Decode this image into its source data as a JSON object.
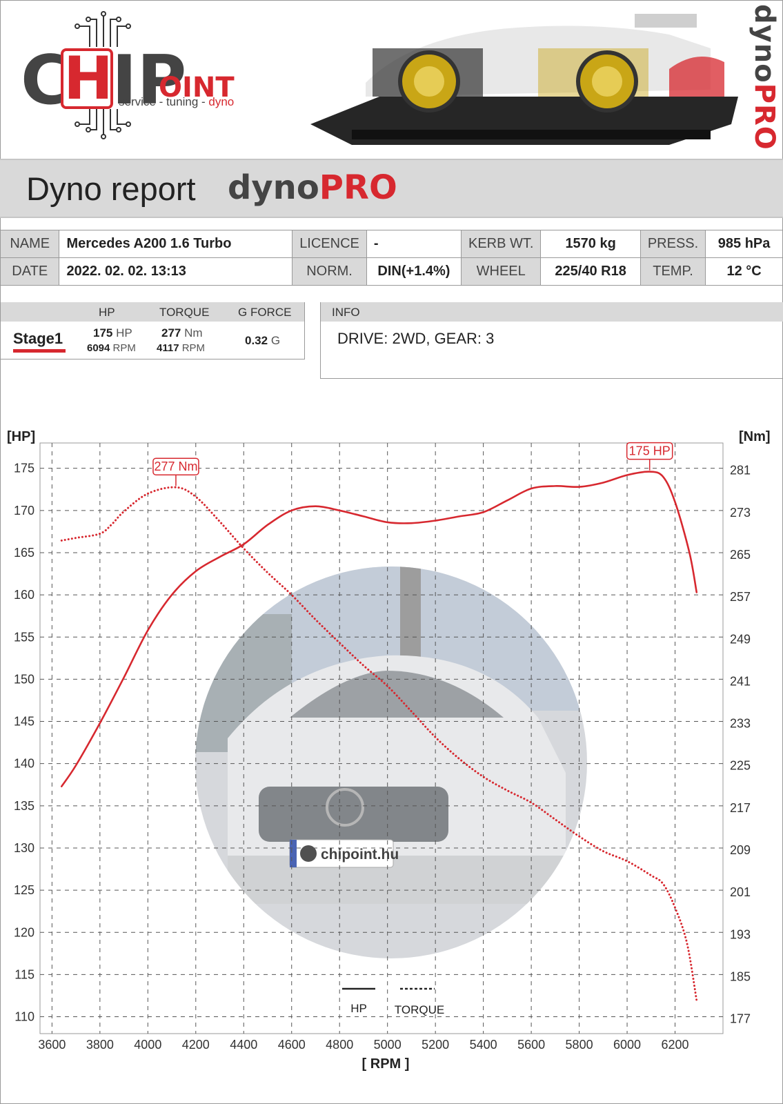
{
  "header": {
    "logo": {
      "c": "C",
      "h": "H",
      "ip": "IP",
      "oint": "OINT",
      "tag_service": "service - tuning - ",
      "tag_dyno": "dyno"
    },
    "brand_vertical": {
      "dyno": "dyno",
      "pro": "PRO"
    }
  },
  "title": {
    "text": "Dyno report",
    "brand_dyno": "dyno",
    "brand_pro": "PRO"
  },
  "meta": {
    "name_label": "NAME",
    "name": "Mercedes A200 1.6 Turbo",
    "licence_label": "LICENCE",
    "licence": "-",
    "kerb_label": "KERB WT.",
    "kerb": "1570 kg",
    "press_label": "PRESS.",
    "press": "985 hPa",
    "date_label": "DATE",
    "date": "2022. 02. 02. 13:13",
    "norm_label": "NORM.",
    "norm": "DIN(+1.4%)",
    "wheel_label": "WHEEL",
    "wheel": "225/40 R18",
    "temp_label": "TEMP.",
    "temp": "12 °C"
  },
  "results": {
    "h_hp": "HP",
    "h_torque": "TORQUE",
    "h_g": "G FORCE",
    "stage": "Stage1",
    "hp_val": "175",
    "hp_unit": "HP",
    "hp_rpm": "6094",
    "rpm_unit": "RPM",
    "tq_val": "277",
    "tq_unit": "Nm",
    "tq_rpm": "4117",
    "g_val": "0.32",
    "g_unit": "G"
  },
  "info": {
    "label": "INFO",
    "text": "DRIVE: 2WD,  GEAR: 3"
  },
  "plate": "chipoint.hu",
  "colors": {
    "accent": "#d7282f",
    "grey": "#d9d9d9"
  },
  "chart_data": {
    "type": "line",
    "xlabel": "[ RPM ]",
    "ylabel_left": "[HP]",
    "ylabel_right": "[Nm]",
    "xlim": [
      3550,
      6400
    ],
    "xticks": [
      3600,
      3800,
      4000,
      4200,
      4400,
      4600,
      4800,
      5000,
      5200,
      5400,
      5600,
      5800,
      6000,
      6200
    ],
    "ylim_left": [
      108,
      178
    ],
    "yticks_left": [
      110,
      115,
      120,
      125,
      130,
      135,
      140,
      145,
      150,
      155,
      160,
      165,
      170,
      175
    ],
    "ylim_right": [
      174.2,
      286.2
    ],
    "yticks_right": [
      177,
      185,
      193,
      201,
      209,
      217,
      225,
      233,
      241,
      249,
      257,
      265,
      273,
      281
    ],
    "grid": true,
    "legend": {
      "position": "bottom-center",
      "hp": "HP",
      "torque": "TORQUE"
    },
    "series": [
      {
        "name": "HP",
        "axis": "left",
        "style": "solid",
        "x": [
          3640,
          3700,
          3800,
          3900,
          4000,
          4100,
          4200,
          4300,
          4400,
          4500,
          4600,
          4700,
          4800,
          4900,
          5000,
          5100,
          5200,
          5300,
          5400,
          5500,
          5600,
          5700,
          5800,
          5900,
          6000,
          6094,
          6150,
          6200,
          6260,
          6290
        ],
        "y": [
          137.3,
          139.8,
          144.8,
          150.2,
          155.8,
          160.0,
          162.8,
          164.5,
          166.0,
          168.3,
          170.0,
          170.5,
          170.0,
          169.3,
          168.6,
          168.5,
          168.8,
          169.3,
          169.8,
          171.2,
          172.6,
          172.9,
          172.8,
          173.3,
          174.2,
          174.6,
          174.0,
          171.0,
          165.0,
          160.3
        ]
      },
      {
        "name": "TORQUE",
        "axis": "right",
        "style": "dotted",
        "x": [
          3640,
          3700,
          3800,
          3850,
          3900,
          4000,
          4117,
          4200,
          4300,
          4400,
          4500,
          4600,
          4700,
          4800,
          4900,
          5000,
          5100,
          5200,
          5300,
          5400,
          5500,
          5600,
          5700,
          5800,
          5900,
          6000,
          6100,
          6150,
          6200,
          6250,
          6290
        ],
        "y": [
          267.7,
          268.2,
          269.0,
          270.8,
          273.2,
          276.6,
          277.8,
          276.0,
          271.3,
          266.2,
          261.6,
          257.4,
          252.7,
          248.3,
          244.0,
          240.1,
          235.3,
          230.4,
          226.3,
          222.9,
          220.3,
          218.0,
          214.8,
          211.6,
          208.8,
          206.9,
          204.2,
          202.6,
          198.1,
          191.3,
          180.5
        ]
      }
    ],
    "annotations": [
      {
        "text": "277 Nm",
        "x": 4117,
        "y": 277.8,
        "axis": "right"
      },
      {
        "text": "175 HP",
        "x": 6094,
        "y": 174.6,
        "axis": "left"
      }
    ]
  }
}
